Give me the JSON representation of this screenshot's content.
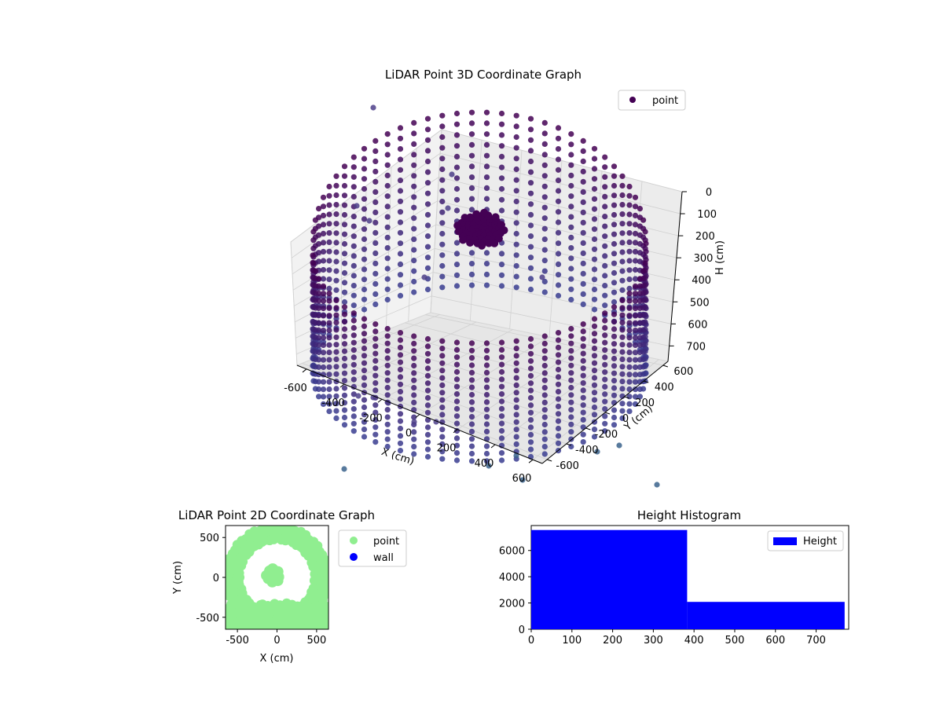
{
  "chart_data": [
    {
      "type": "scatter",
      "title": "LiDAR Point 3D Coordinate Graph",
      "xlabel": "X (cm)",
      "ylabel": "Y (cm)",
      "zlabel": "H (cm)",
      "legend": [
        "point"
      ],
      "legend_position": "top-right",
      "grid": true,
      "x_ticks": [
        "-600",
        "-400",
        "-200",
        "0",
        "200",
        "400",
        "600"
      ],
      "y_ticks": [
        "-600",
        "-400",
        "-200",
        "0",
        "200",
        "400",
        "600"
      ],
      "z_ticks": [
        "0",
        "100",
        "200",
        "300",
        "400",
        "500",
        "600",
        "700"
      ],
      "xlim": [
        -650,
        650
      ],
      "ylim": [
        -650,
        650
      ],
      "zlim": [
        770,
        0
      ],
      "colormap": "viridis",
      "series": [
        {
          "name": "point",
          "description_of_shape": "circular wall of points ~600 cm radius from H 0 to 750 cm, plus central cluster and scattered outliers",
          "sample_points": [
            {
              "x": -600,
              "y": 0,
              "h": 700
            },
            {
              "x": 0,
              "y": -600,
              "h": 700
            },
            {
              "x": 600,
              "y": 0,
              "h": 700
            },
            {
              "x": 0,
              "y": 600,
              "h": 700
            },
            {
              "x": -50,
              "y": 120,
              "h": 100
            }
          ]
        }
      ]
    },
    {
      "type": "scatter",
      "title": "LiDAR Point 2D Coordinate Graph",
      "xlabel": "X (cm)",
      "ylabel": "Y (cm)",
      "x_ticks": [
        "-500",
        "0",
        "500"
      ],
      "y_ticks": [
        "-500",
        "0",
        "500"
      ],
      "xlim": [
        -650,
        650
      ],
      "ylim": [
        -650,
        650
      ],
      "legend": [
        "point",
        "wall"
      ],
      "legend_position": "right",
      "series": [
        {
          "name": "point",
          "color": "#90ee90"
        },
        {
          "name": "wall",
          "color": "#0000ff"
        }
      ]
    },
    {
      "type": "bar",
      "title": "Height Histogram",
      "legend": [
        "Height"
      ],
      "legend_position": "top-right",
      "bins": [
        {
          "from": 0,
          "to": 383,
          "count": 7560
        },
        {
          "from": 383,
          "to": 770,
          "count": 2080
        }
      ],
      "xlim": [
        0,
        780
      ],
      "ylim": [
        0,
        7900
      ],
      "x_ticks": [
        "0",
        "100",
        "200",
        "300",
        "400",
        "500",
        "600",
        "700"
      ],
      "y_ticks": [
        "0",
        "2000",
        "4000",
        "6000"
      ],
      "color": "#0000ff"
    }
  ]
}
